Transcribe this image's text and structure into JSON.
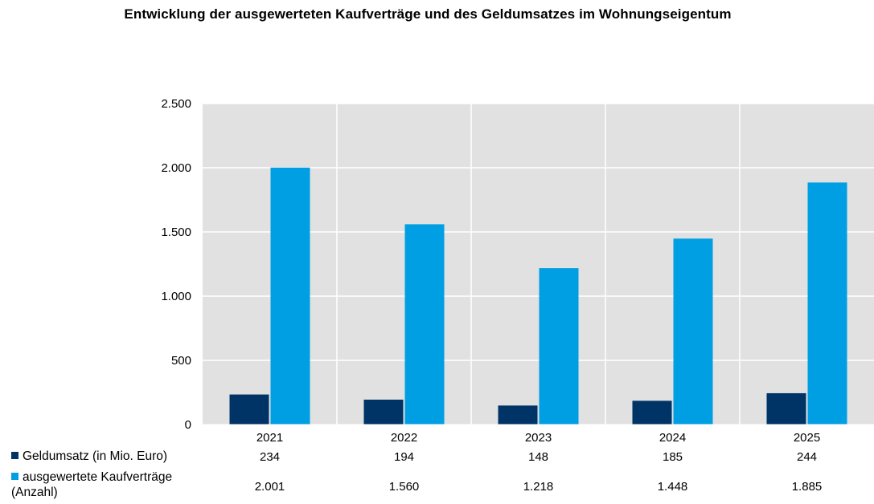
{
  "chart_data": {
    "type": "bar",
    "title": "Entwicklung der ausgewerteten Kaufverträge und des Geldumsatzes im Wohnungseigentum",
    "categories": [
      "2021",
      "2022",
      "2023",
      "2024",
      "2025"
    ],
    "series": [
      {
        "name": "Geldumsatz (in Mio. Euro)",
        "values": [
          234,
          194,
          148,
          185,
          244
        ],
        "labels": [
          "234",
          "194",
          "148",
          "185",
          "244"
        ],
        "color": "#003366"
      },
      {
        "name": "ausgewertete Kaufverträge (Anzahl)",
        "name_line1": "ausgewertete Kaufverträge",
        "name_line2": "(Anzahl)",
        "values": [
          2001,
          1560,
          1218,
          1448,
          1885
        ],
        "labels": [
          "2.001",
          "1.560",
          "1.218",
          "1.448",
          "1.885"
        ],
        "color": "#009FE3"
      }
    ],
    "ylim": [
      0,
      2500
    ],
    "yticks": [
      0,
      500,
      1000,
      1500,
      2000,
      2500
    ],
    "ytick_labels": [
      "0",
      "500",
      "1.000",
      "1.500",
      "2.000",
      "2.500"
    ],
    "grid": true,
    "plot_background": "#E1E1E1",
    "legend": "data-table-below"
  }
}
